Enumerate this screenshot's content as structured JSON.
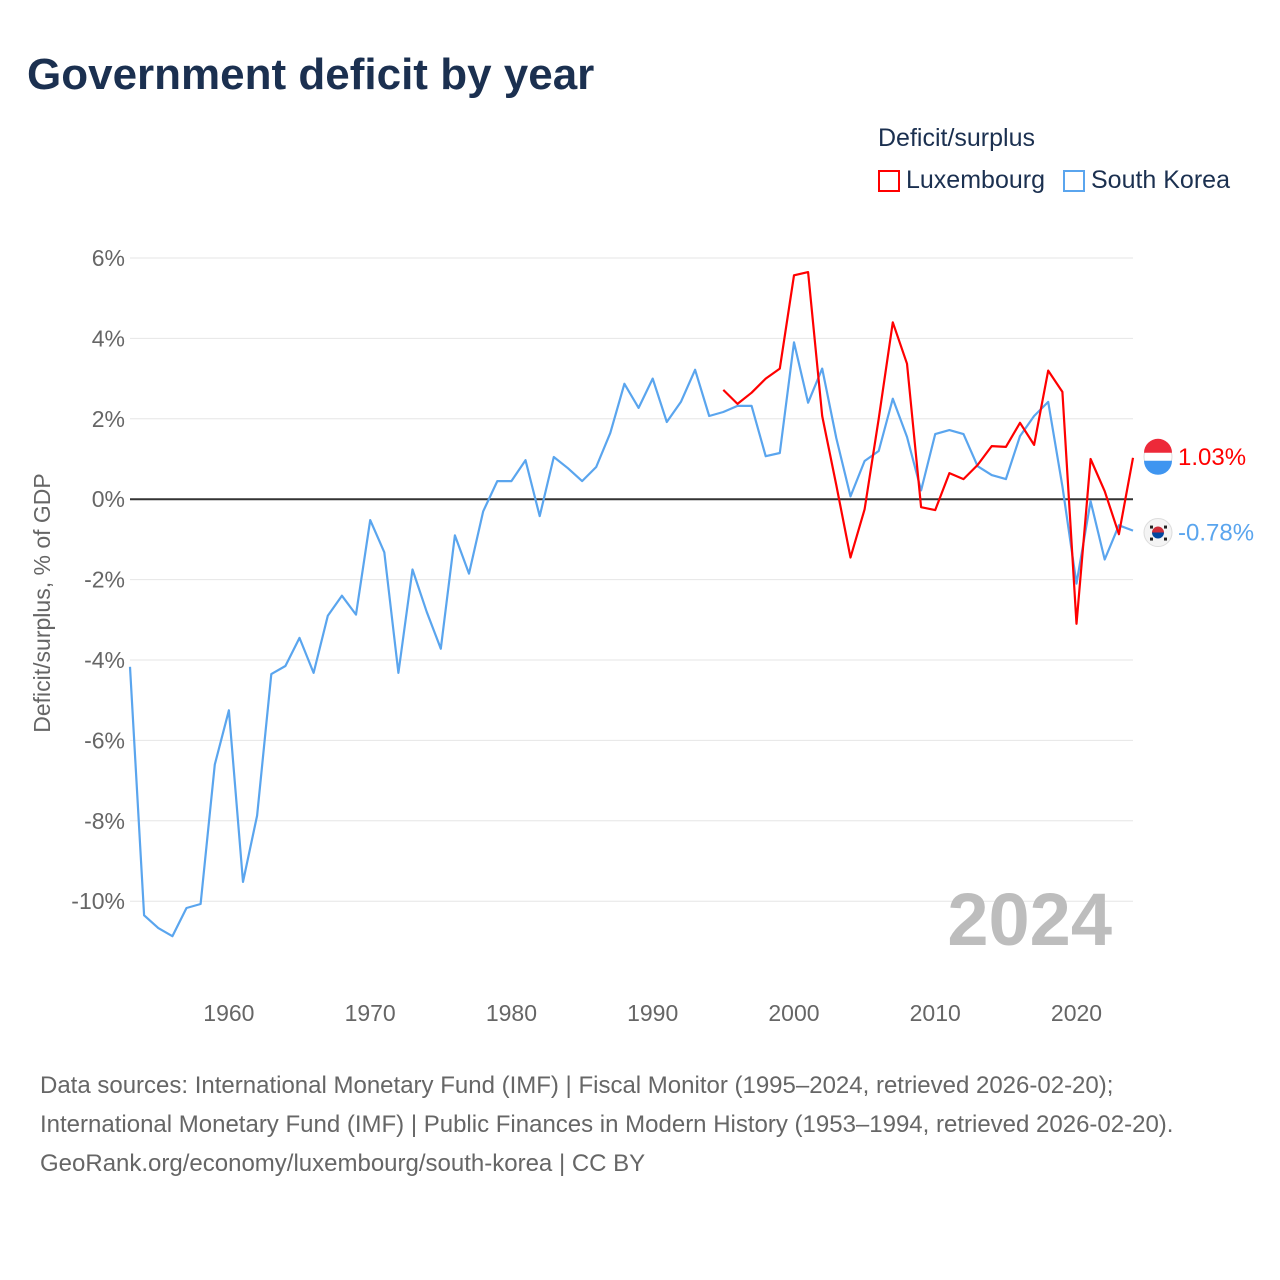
{
  "title": "Government deficit by year",
  "legend": {
    "title": "Deficit/surplus",
    "items": [
      {
        "name": "Luxembourg",
        "color": "#ff0000"
      },
      {
        "name": "South Korea",
        "color": "#5aa5ee"
      }
    ]
  },
  "footer": {
    "sources": "Data sources: International Monetary Fund (IMF) | Fiscal Monitor (1995–2024, retrieved 2026-02-20); International Monetary Fund (IMF) | Public Finances in Modern History (1953–1994, retrieved 2026-02-20).",
    "credit": "GeoRank.org/economy/luxembourg/south-korea | CC BY"
  },
  "chart_data": {
    "type": "line",
    "title": "Government deficit by year",
    "xlabel": "",
    "ylabel": "Deficit/surplus, % of GDP",
    "xlim": [
      1953,
      2024
    ],
    "ylim": [
      -12,
      6
    ],
    "yticks": [
      6,
      4,
      2,
      0,
      -2,
      -4,
      -6,
      -8,
      -10
    ],
    "ytick_labels": [
      "6%",
      "4%",
      "2%",
      "0%",
      "-2%",
      "-4%",
      "-6%",
      "-8%",
      "-10%"
    ],
    "xticks": [
      1960,
      1970,
      1980,
      1990,
      2000,
      2010,
      2020
    ],
    "xtick_labels": [
      "1960",
      "1970",
      "1980",
      "1990",
      "2000",
      "2010",
      "2020"
    ],
    "year_label": "2024",
    "series": [
      {
        "name": "Luxembourg",
        "color": "#ff0000",
        "end_label": "1.03%",
        "x": [
          1995,
          1996,
          1997,
          1998,
          1999,
          2000,
          2001,
          2002,
          2003,
          2004,
          2005,
          2006,
          2007,
          2008,
          2009,
          2010,
          2011,
          2012,
          2013,
          2014,
          2015,
          2016,
          2017,
          2018,
          2019,
          2020,
          2021,
          2022,
          2023,
          2024
        ],
        "values": [
          2.72,
          2.37,
          2.65,
          3.0,
          3.25,
          5.57,
          5.65,
          2.07,
          0.35,
          -1.45,
          -0.25,
          2.0,
          4.4,
          3.37,
          -0.2,
          -0.27,
          0.65,
          0.5,
          0.85,
          1.32,
          1.3,
          1.9,
          1.35,
          3.2,
          2.67,
          -3.1,
          1.0,
          0.2,
          -0.87,
          1.03
        ]
      },
      {
        "name": "South Korea",
        "color": "#5aa5ee",
        "end_label": "-0.78%",
        "x": [
          1953,
          1954,
          1955,
          1956,
          1957,
          1958,
          1959,
          1960,
          1961,
          1962,
          1963,
          1964,
          1965,
          1966,
          1967,
          1968,
          1969,
          1970,
          1971,
          1972,
          1973,
          1974,
          1975,
          1976,
          1977,
          1978,
          1979,
          1980,
          1981,
          1982,
          1983,
          1984,
          1985,
          1986,
          1987,
          1988,
          1989,
          1990,
          1991,
          1992,
          1993,
          1994,
          1995,
          1996,
          1997,
          1998,
          1999,
          2000,
          2001,
          2002,
          2003,
          2004,
          2005,
          2006,
          2007,
          2008,
          2009,
          2010,
          2011,
          2012,
          2013,
          2014,
          2015,
          2016,
          2017,
          2018,
          2019,
          2020,
          2021,
          2022,
          2023,
          2024
        ],
        "values": [
          -4.17,
          -10.35,
          -10.67,
          -10.87,
          -10.17,
          -10.07,
          -6.6,
          -5.25,
          -9.52,
          -7.87,
          -4.35,
          -4.15,
          -3.45,
          -4.32,
          -2.9,
          -2.4,
          -2.87,
          -0.52,
          -1.32,
          -4.32,
          -1.75,
          -2.8,
          -3.72,
          -0.9,
          -1.85,
          -0.3,
          0.45,
          0.45,
          0.97,
          -0.42,
          1.05,
          0.77,
          0.45,
          0.8,
          1.65,
          2.87,
          2.27,
          3.0,
          1.92,
          2.42,
          3.22,
          2.07,
          2.17,
          2.32,
          2.32,
          1.07,
          1.15,
          3.9,
          2.4,
          3.25,
          1.52,
          0.07,
          0.95,
          1.2,
          2.5,
          1.55,
          0.22,
          1.62,
          1.72,
          1.62,
          0.82,
          0.6,
          0.5,
          1.57,
          2.07,
          2.42,
          0.32,
          -2.1,
          -0.05,
          -1.5,
          -0.65,
          -0.78
        ]
      }
    ]
  }
}
